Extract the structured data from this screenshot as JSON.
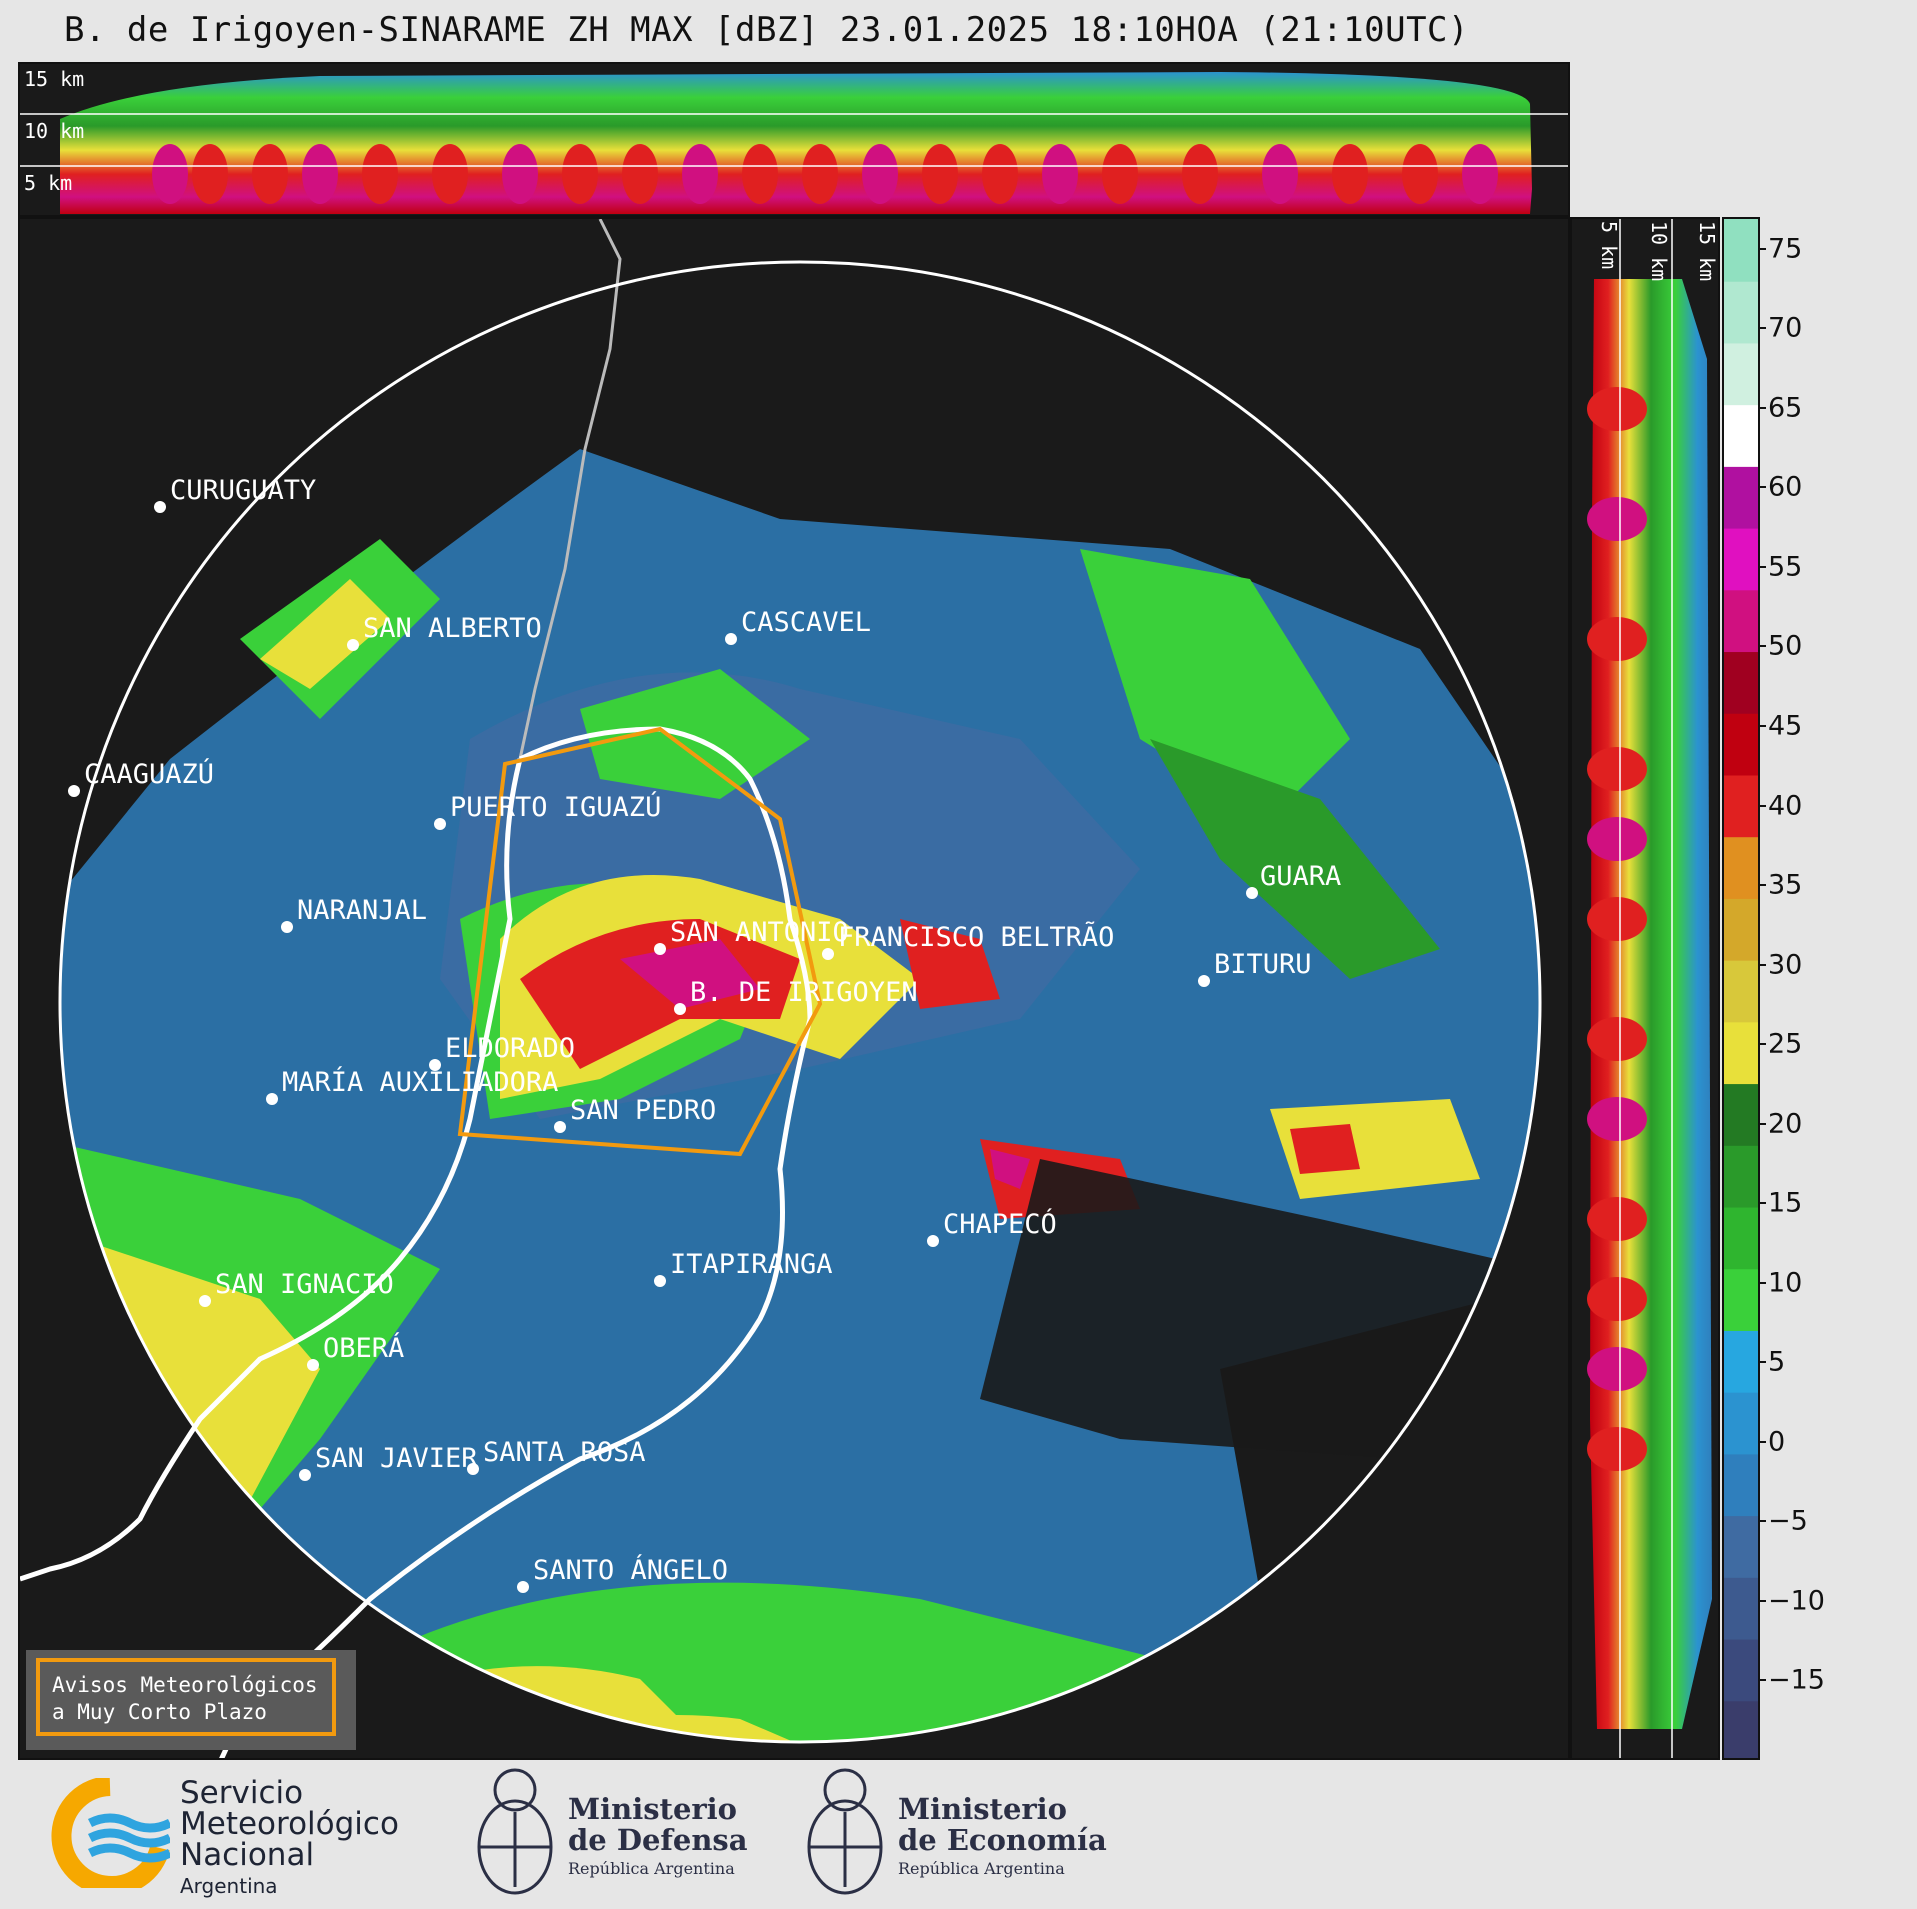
{
  "title": "B. de Irigoyen-SINARAME ZH MAX [dBZ] 23.01.2025 18:10HOA (21:10UTC)",
  "top_panel": {
    "height_labels": [
      "15 km",
      "10 km",
      "5 km"
    ]
  },
  "side_panel": {
    "height_labels": [
      "5 km",
      "10 km",
      "15 km"
    ]
  },
  "colorbar": {
    "unit": "dBZ",
    "ticks": [
      "75",
      "70",
      "65",
      "60",
      "55",
      "50",
      "45",
      "40",
      "35",
      "30",
      "25",
      "20",
      "15",
      "10",
      "5",
      "0",
      "−5",
      "−10",
      "−15"
    ],
    "range": [
      -20,
      77
    ],
    "colors": [
      "#3a3d6b",
      "#3b4a7d",
      "#3d5a8f",
      "#3f6ba2",
      "#2f7fbd",
      "#2b93d0",
      "#27a7e0",
      "#3ad03a",
      "#2fb52f",
      "#2a9a2a",
      "#237a23",
      "#e8e03a",
      "#d8c83a",
      "#d4a82a",
      "#e09020",
      "#e02020",
      "#c00010",
      "#a00020",
      "#d01080",
      "#e010c0",
      "#b010a0",
      "#ffffff",
      "#d0f0e0",
      "#b0e8d0",
      "#90e0c0"
    ]
  },
  "cities": [
    {
      "name": "CURUGUATY"
    },
    {
      "name": "SAN ALBERTO"
    },
    {
      "name": "CASCAVEL"
    },
    {
      "name": "CAAGUAZÚ"
    },
    {
      "name": "GUARA"
    },
    {
      "name": "PUERTO IGUAZÚ"
    },
    {
      "name": "NARANJAL"
    },
    {
      "name": "SAN ANTONIO"
    },
    {
      "name": "FRANCISCO BELTRÃO"
    },
    {
      "name": "BITURU"
    },
    {
      "name": "B. DE IRIGOYEN"
    },
    {
      "name": "ELDORADO"
    },
    {
      "name": "MARÍA AUXILIADORA"
    },
    {
      "name": "SAN PEDRO"
    },
    {
      "name": "CHAPECÓ"
    },
    {
      "name": "ITAPIRANGA"
    },
    {
      "name": "SAN IGNACIO"
    },
    {
      "name": "OBERÁ"
    },
    {
      "name": "SAN JAVIER"
    },
    {
      "name": "SANTA ROSA"
    },
    {
      "name": "SANTO ÁNGELO"
    }
  ],
  "alert_box": {
    "line1": "Avisos Meteorológicos",
    "line2": "a Muy Corto Plazo"
  },
  "footer": {
    "smn": {
      "line1": "Servicio",
      "line2": "Meteorológico",
      "line3": "Nacional",
      "line4": "Argentina"
    },
    "defensa": {
      "line1": "Ministerio",
      "line2": "de Defensa",
      "line3": "República Argentina"
    },
    "economia": {
      "line1": "Ministerio",
      "line2": "de Economía",
      "line3": "República Argentina"
    }
  }
}
